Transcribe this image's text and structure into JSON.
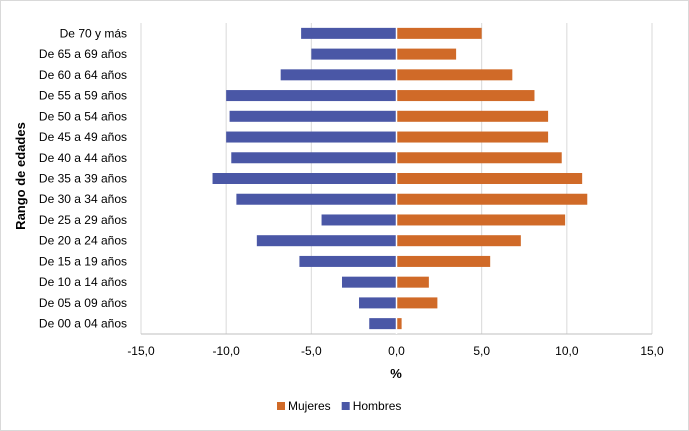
{
  "chart_data": {
    "type": "bar",
    "orientation": "horizontal",
    "xlabel": "%",
    "ylabel": "Rango de edades",
    "xlim": [
      -15,
      15
    ],
    "xticks": [
      -15,
      -10,
      -5,
      0,
      5,
      10,
      15
    ],
    "xtick_labels": [
      "-15,0",
      "-10,0",
      "-5,0",
      "0,0",
      "5,0",
      "10,0",
      "15,0"
    ],
    "grid": "vertical",
    "legend_position": "bottom",
    "categories": [
      "De 70 y más",
      "De 65 a 69 años",
      "De 60 a 64 años",
      "De 55 a 59 años",
      "De 50 a 54 años",
      "De 45 a 49 años",
      "De 40 a 44 años",
      "De 35 a 39 años",
      "De 30 a 34 años",
      "De 25 a 29 años",
      "De 20 a 24 años",
      "De 15 a 19 años",
      "De 10 a 14 años",
      "De 05 a 09 años",
      "De 00 a 04 años"
    ],
    "series": [
      {
        "name": "Mujeres",
        "color": "#D06A28",
        "values": [
          5.0,
          3.5,
          6.8,
          8.1,
          8.9,
          8.9,
          9.7,
          10.9,
          11.2,
          9.9,
          7.3,
          5.5,
          1.9,
          2.4,
          0.3
        ]
      },
      {
        "name": "Hombres",
        "color": "#4A57A6",
        "values": [
          -5.6,
          -5.0,
          -6.8,
          -10.0,
          -9.8,
          -10.0,
          -9.7,
          -10.8,
          -9.4,
          -4.4,
          -8.2,
          -5.7,
          -3.2,
          -2.2,
          -1.6
        ]
      }
    ]
  }
}
